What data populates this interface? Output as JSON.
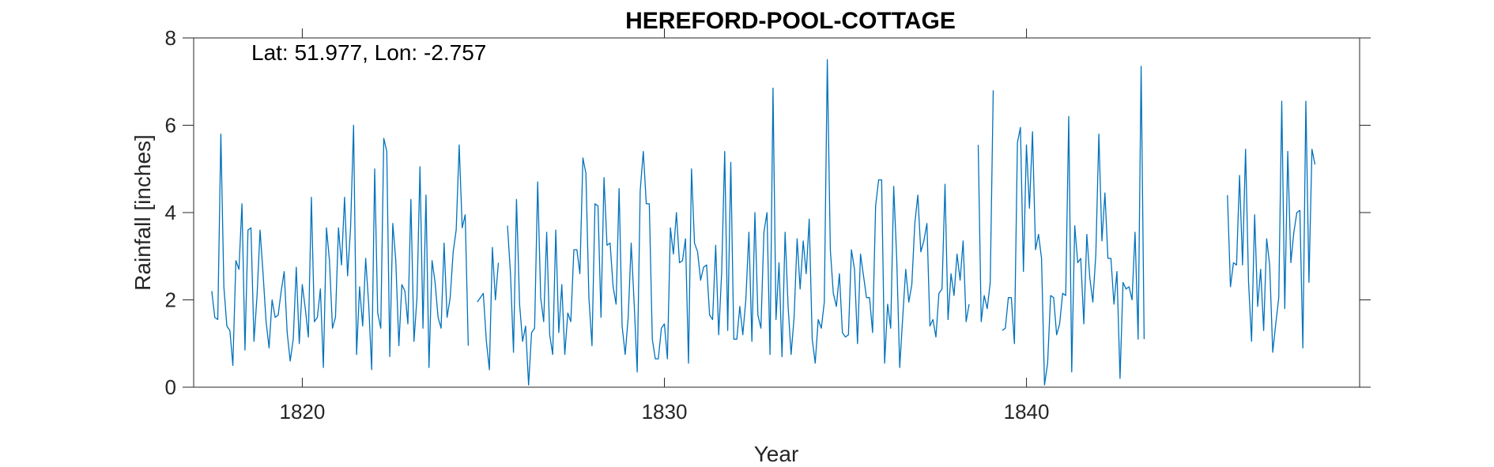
{
  "chart_data": {
    "type": "line",
    "title": "HEREFORD-POOL-COTTAGE",
    "xlabel": "Year",
    "ylabel": "Rainfall [inches]",
    "annotation": "Lat: 51.977, Lon: -2.757",
    "xlim": [
      1817.0,
      1849.2
    ],
    "ylim": [
      0,
      8
    ],
    "x_ticks": [
      1820,
      1830,
      1840
    ],
    "y_ticks": [
      0,
      2,
      4,
      6,
      8
    ],
    "grid": false,
    "line_color": "#0072BD",
    "series": [
      {
        "start_year": 1817.5,
        "step": 0.08333,
        "values": [
          2.2,
          1.6,
          1.55,
          5.8,
          2.3,
          1.4,
          1.3,
          0.5,
          2.9,
          2.7,
          4.2,
          0.85,
          3.6,
          3.65,
          1.05,
          2.1,
          3.6,
          2.6,
          1.5,
          0.9,
          2.0,
          1.6,
          1.65,
          2.2,
          2.65,
          1.25,
          0.6,
          1.1,
          2.75,
          1.0,
          2.35,
          1.8,
          1.15,
          4.35,
          1.5,
          1.6,
          2.25,
          0.45,
          3.65,
          2.9,
          1.35,
          1.6,
          3.65,
          2.8,
          4.35,
          2.55,
          3.65,
          6.0,
          0.75,
          2.3,
          1.4,
          2.95,
          1.9,
          0.4,
          5.0,
          1.7,
          1.35,
          5.7,
          5.4,
          0.7,
          3.75,
          2.9,
          0.95,
          2.35,
          2.2,
          1.45,
          4.3,
          1.05,
          2.05,
          5.05,
          1.35,
          4.4,
          0.45,
          2.9,
          2.4,
          1.6,
          1.35,
          3.3,
          1.6,
          2.05,
          3.1,
          3.6,
          5.55,
          3.65,
          3.95,
          0.95,
          null,
          null,
          1.95,
          2.05,
          2.15,
          1.05,
          0.4,
          3.2,
          2.0,
          2.85,
          null,
          null,
          3.7,
          2.6,
          0.8,
          4.3,
          1.9,
          1.05,
          1.4,
          0.05,
          1.25,
          1.35,
          4.7,
          2.05,
          1.5,
          3.55,
          1.2,
          0.75,
          3.6,
          1.25,
          2.35,
          0.75,
          1.7,
          1.5,
          3.15,
          3.15,
          2.6,
          5.25,
          4.9,
          2.05,
          0.95,
          4.2,
          4.15,
          1.6,
          4.8,
          3.25,
          3.3,
          2.3,
          1.9,
          4.55,
          1.4,
          0.75,
          1.6,
          3.3,
          1.9,
          0.35,
          4.5,
          5.4,
          4.2,
          4.2,
          1.1,
          0.65,
          0.65,
          1.35,
          1.45,
          0.65,
          3.65,
          3.05,
          4.0,
          2.85,
          2.9,
          3.4,
          0.55,
          5.0,
          3.3,
          3.1,
          2.45,
          2.75,
          2.8,
          1.65,
          1.55,
          3.25,
          1.2,
          2.65,
          5.4,
          1.3,
          5.15,
          1.1,
          1.1,
          1.85,
          1.2,
          2.0,
          3.55,
          1.05,
          4.0,
          1.65,
          1.35,
          3.55,
          4.0,
          0.75,
          6.85,
          1.55,
          2.85,
          0.7,
          3.55,
          1.85,
          0.75,
          1.6,
          3.4,
          2.25,
          3.35,
          2.6,
          3.85,
          1.1,
          0.55,
          1.55,
          1.35,
          1.95,
          7.5,
          3.15,
          2.15,
          1.85,
          2.6,
          1.25,
          1.15,
          1.2,
          3.15,
          2.7,
          1.0,
          3.05,
          2.55,
          2.05,
          2.05,
          1.25,
          4.15,
          4.75,
          4.75,
          0.55,
          1.9,
          1.35,
          4.6,
          2.95,
          0.45,
          1.6,
          2.7,
          1.95,
          2.35,
          3.75,
          4.4,
          3.1,
          3.35,
          3.75,
          1.4,
          1.55,
          1.15,
          2.15,
          2.25,
          4.65,
          1.55,
          2.6,
          2.1,
          3.05,
          2.45,
          3.35,
          1.5,
          1.9,
          null,
          null,
          5.55,
          1.5,
          2.1,
          1.8,
          2.4,
          6.8,
          null,
          null,
          1.3,
          1.35,
          2.05,
          2.05,
          1.0,
          5.6,
          5.95,
          2.65,
          5.55,
          4.1,
          5.85,
          3.15,
          3.5,
          2.95,
          0.05,
          0.55,
          2.1,
          2.05,
          1.2,
          1.45,
          2.15,
          2.1,
          6.2,
          0.35,
          3.7,
          2.85,
          2.95,
          1.45,
          3.5,
          2.5,
          1.95,
          3.05,
          5.8,
          3.35,
          4.45,
          2.95,
          2.95,
          1.9,
          2.65,
          0.2,
          2.4,
          2.25,
          2.3,
          2.0,
          3.55,
          1.1,
          7.35,
          1.1
        ]
      },
      {
        "start_year": 1845.55,
        "step": 0.08333,
        "values": [
          4.4,
          2.3,
          2.85,
          2.8,
          4.85,
          2.8,
          5.45,
          2.4,
          1.05,
          3.95,
          1.85,
          2.7,
          1.3,
          3.4,
          2.8,
          0.8,
          1.45,
          2.05,
          6.55,
          1.8,
          5.4,
          2.85,
          3.55,
          4.0,
          4.05,
          0.9,
          6.55,
          2.4,
          5.45,
          5.1
        ]
      }
    ]
  }
}
